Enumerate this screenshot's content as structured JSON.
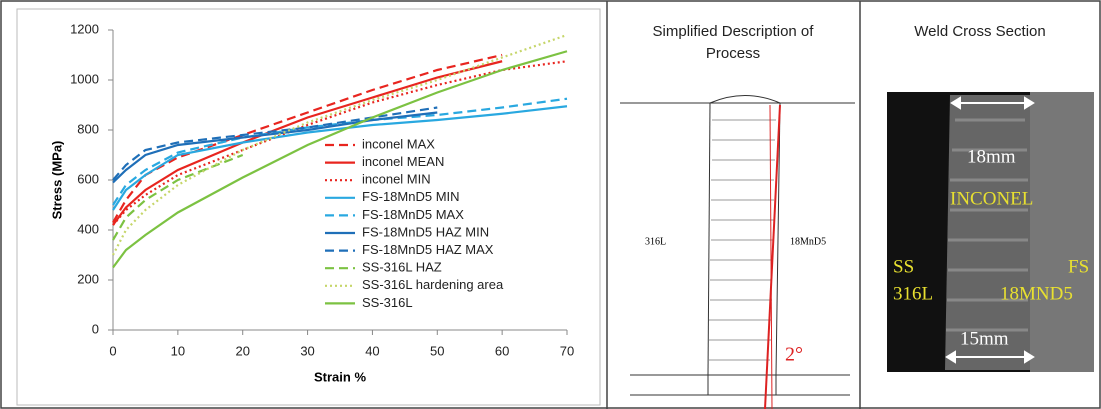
{
  "chart_data": {
    "type": "line",
    "x_label": "Strain %",
    "y_label": "Stress (MPa)",
    "x": [
      0,
      2,
      5,
      10,
      20,
      30,
      40,
      50,
      60,
      70
    ],
    "xlim": [
      0,
      70
    ],
    "xticks": [
      0,
      10,
      20,
      30,
      40,
      50,
      60,
      70
    ],
    "ylim": [
      0,
      1200
    ],
    "yticks": [
      0,
      200,
      400,
      600,
      800,
      1000,
      1200
    ],
    "legend": "lower-right",
    "series": [
      {
        "name": "inconel MAX",
        "color": "#e8251f",
        "dash": "dashed",
        "values": [
          430,
          520,
          620,
          690,
          780,
          870,
          960,
          1040,
          1100,
          null
        ]
      },
      {
        "name": "inconel MEAN",
        "color": "#e8251f",
        "dash": "solid",
        "values": [
          420,
          490,
          560,
          640,
          750,
          850,
          930,
          1010,
          1075,
          null
        ]
      },
      {
        "name": "inconel MIN",
        "color": "#e8251f",
        "dash": "dotted",
        "values": [
          420,
          480,
          540,
          620,
          720,
          820,
          910,
          980,
          1040,
          1075
        ]
      },
      {
        "name": "FS-18MnD5 MIN",
        "color": "#29a8e0",
        "dash": "solid",
        "values": [
          480,
          560,
          620,
          700,
          750,
          790,
          820,
          840,
          865,
          895
        ]
      },
      {
        "name": "FS-18MnD5 MAX",
        "color": "#29a8e0",
        "dash": "dashed",
        "values": [
          500,
          580,
          640,
          710,
          770,
          810,
          840,
          860,
          890,
          925
        ]
      },
      {
        "name": "FS-18MnD5 HAZ MIN",
        "color": "#1f6fb8",
        "dash": "solid",
        "values": [
          590,
          640,
          700,
          740,
          770,
          800,
          840,
          870,
          null,
          null
        ]
      },
      {
        "name": "FS-18MnD5 HAZ MAX",
        "color": "#1f6fb8",
        "dash": "dashed",
        "values": [
          600,
          660,
          720,
          750,
          780,
          810,
          850,
          890,
          null,
          null
        ]
      },
      {
        "name": "SS-316L HAZ",
        "color": "#7cc242",
        "dash": "dashed",
        "values": [
          360,
          450,
          520,
          600,
          700,
          null,
          null,
          null,
          null,
          null
        ]
      },
      {
        "name": "SS-316L hardening area",
        "color": "#c6d66a",
        "dash": "dotted",
        "values": [
          300,
          400,
          480,
          580,
          720,
          830,
          920,
          1000,
          1090,
          1180
        ]
      },
      {
        "name": "SS-316L",
        "color": "#7cc242",
        "dash": "solid",
        "values": [
          250,
          320,
          380,
          470,
          610,
          740,
          850,
          950,
          1040,
          1115
        ]
      }
    ]
  },
  "panels": [
    {
      "title": "Simplified Description of Process",
      "labels": [
        "316L",
        "18MnD5",
        "2°"
      ]
    },
    {
      "title": "Weld Cross Section",
      "labels": [
        "18mm",
        "INCONEL",
        "SS",
        "316L",
        "FS",
        "18MND5",
        "15mm"
      ]
    }
  ]
}
